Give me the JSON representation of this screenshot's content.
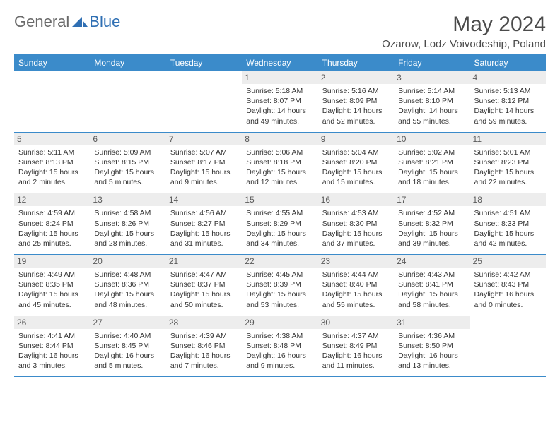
{
  "brand": {
    "part1": "General",
    "part2": "Blue"
  },
  "title": "May 2024",
  "location": "Ozarow, Lodz Voivodeship, Poland",
  "colors": {
    "header_bg": "#3b8bca",
    "header_text": "#ffffff",
    "daynum_bg": "#ededed",
    "border": "#3b8bca",
    "logo_gray": "#6a6a6a",
    "logo_blue": "#2f6fb3",
    "body_text": "#333333"
  },
  "fonts": {
    "title_size": 30,
    "location_size": 15,
    "head_size": 12,
    "info_size": 10.5
  },
  "dayNames": [
    "Sunday",
    "Monday",
    "Tuesday",
    "Wednesday",
    "Thursday",
    "Friday",
    "Saturday"
  ],
  "weeks": [
    [
      null,
      null,
      null,
      {
        "n": "1",
        "sr": "5:18 AM",
        "ss": "8:07 PM",
        "dl": "14 hours and 49 minutes."
      },
      {
        "n": "2",
        "sr": "5:16 AM",
        "ss": "8:09 PM",
        "dl": "14 hours and 52 minutes."
      },
      {
        "n": "3",
        "sr": "5:14 AM",
        "ss": "8:10 PM",
        "dl": "14 hours and 55 minutes."
      },
      {
        "n": "4",
        "sr": "5:13 AM",
        "ss": "8:12 PM",
        "dl": "14 hours and 59 minutes."
      }
    ],
    [
      {
        "n": "5",
        "sr": "5:11 AM",
        "ss": "8:13 PM",
        "dl": "15 hours and 2 minutes."
      },
      {
        "n": "6",
        "sr": "5:09 AM",
        "ss": "8:15 PM",
        "dl": "15 hours and 5 minutes."
      },
      {
        "n": "7",
        "sr": "5:07 AM",
        "ss": "8:17 PM",
        "dl": "15 hours and 9 minutes."
      },
      {
        "n": "8",
        "sr": "5:06 AM",
        "ss": "8:18 PM",
        "dl": "15 hours and 12 minutes."
      },
      {
        "n": "9",
        "sr": "5:04 AM",
        "ss": "8:20 PM",
        "dl": "15 hours and 15 minutes."
      },
      {
        "n": "10",
        "sr": "5:02 AM",
        "ss": "8:21 PM",
        "dl": "15 hours and 18 minutes."
      },
      {
        "n": "11",
        "sr": "5:01 AM",
        "ss": "8:23 PM",
        "dl": "15 hours and 22 minutes."
      }
    ],
    [
      {
        "n": "12",
        "sr": "4:59 AM",
        "ss": "8:24 PM",
        "dl": "15 hours and 25 minutes."
      },
      {
        "n": "13",
        "sr": "4:58 AM",
        "ss": "8:26 PM",
        "dl": "15 hours and 28 minutes."
      },
      {
        "n": "14",
        "sr": "4:56 AM",
        "ss": "8:27 PM",
        "dl": "15 hours and 31 minutes."
      },
      {
        "n": "15",
        "sr": "4:55 AM",
        "ss": "8:29 PM",
        "dl": "15 hours and 34 minutes."
      },
      {
        "n": "16",
        "sr": "4:53 AM",
        "ss": "8:30 PM",
        "dl": "15 hours and 37 minutes."
      },
      {
        "n": "17",
        "sr": "4:52 AM",
        "ss": "8:32 PM",
        "dl": "15 hours and 39 minutes."
      },
      {
        "n": "18",
        "sr": "4:51 AM",
        "ss": "8:33 PM",
        "dl": "15 hours and 42 minutes."
      }
    ],
    [
      {
        "n": "19",
        "sr": "4:49 AM",
        "ss": "8:35 PM",
        "dl": "15 hours and 45 minutes."
      },
      {
        "n": "20",
        "sr": "4:48 AM",
        "ss": "8:36 PM",
        "dl": "15 hours and 48 minutes."
      },
      {
        "n": "21",
        "sr": "4:47 AM",
        "ss": "8:37 PM",
        "dl": "15 hours and 50 minutes."
      },
      {
        "n": "22",
        "sr": "4:45 AM",
        "ss": "8:39 PM",
        "dl": "15 hours and 53 minutes."
      },
      {
        "n": "23",
        "sr": "4:44 AM",
        "ss": "8:40 PM",
        "dl": "15 hours and 55 minutes."
      },
      {
        "n": "24",
        "sr": "4:43 AM",
        "ss": "8:41 PM",
        "dl": "15 hours and 58 minutes."
      },
      {
        "n": "25",
        "sr": "4:42 AM",
        "ss": "8:43 PM",
        "dl": "16 hours and 0 minutes."
      }
    ],
    [
      {
        "n": "26",
        "sr": "4:41 AM",
        "ss": "8:44 PM",
        "dl": "16 hours and 3 minutes."
      },
      {
        "n": "27",
        "sr": "4:40 AM",
        "ss": "8:45 PM",
        "dl": "16 hours and 5 minutes."
      },
      {
        "n": "28",
        "sr": "4:39 AM",
        "ss": "8:46 PM",
        "dl": "16 hours and 7 minutes."
      },
      {
        "n": "29",
        "sr": "4:38 AM",
        "ss": "8:48 PM",
        "dl": "16 hours and 9 minutes."
      },
      {
        "n": "30",
        "sr": "4:37 AM",
        "ss": "8:49 PM",
        "dl": "16 hours and 11 minutes."
      },
      {
        "n": "31",
        "sr": "4:36 AM",
        "ss": "8:50 PM",
        "dl": "16 hours and 13 minutes."
      },
      null
    ]
  ],
  "labels": {
    "sunrise": "Sunrise:",
    "sunset": "Sunset:",
    "daylight": "Daylight:"
  }
}
